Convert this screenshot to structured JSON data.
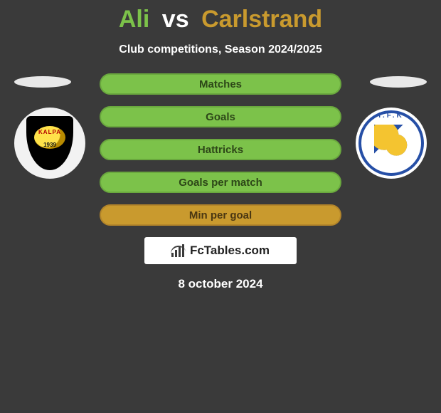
{
  "title": {
    "player1": "Ali",
    "vs": "vs",
    "player2": "Carlstrand",
    "p1_color": "#7cc24a",
    "vs_color": "#ffffff",
    "p2_color": "#c99a2e"
  },
  "subtitle": "Club competitions, Season 2024/2025",
  "stats": [
    {
      "label": "Matches",
      "fill": "#7cc24a",
      "border": "#6aa83e",
      "text": "#2d4718"
    },
    {
      "label": "Goals",
      "fill": "#7cc24a",
      "border": "#6aa83e",
      "text": "#2d4718"
    },
    {
      "label": "Hattricks",
      "fill": "#7cc24a",
      "border": "#6aa83e",
      "text": "#2d4718"
    },
    {
      "label": "Goals per match",
      "fill": "#7cc24a",
      "border": "#6aa83e",
      "text": "#2d4718"
    },
    {
      "label": "Min per goal",
      "fill": "#c99a2e",
      "border": "#b3852a",
      "text": "#4a3712"
    }
  ],
  "left_badge": {
    "name": "KALPA",
    "year": "1939"
  },
  "right_badge": {
    "top": "I.F.K"
  },
  "watermark": "FcTables.com",
  "date": "8 october 2024",
  "colors": {
    "background": "#3a3a3a",
    "avatar_slot": "#e8e8e8",
    "watermark_bg": "#ffffff"
  }
}
